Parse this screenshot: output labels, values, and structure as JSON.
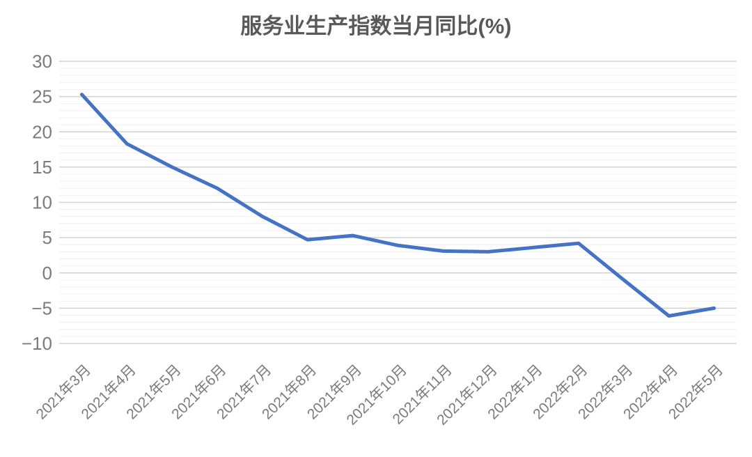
{
  "title": "服务业生产指数当月同比(%)",
  "colors": {
    "line": "#4472C4",
    "title_text": "#595959",
    "axis_text": "#7b7b7b",
    "grid_major": "#d2d2d2",
    "grid_minor": "#efefef",
    "background": "#ffffff"
  },
  "chart_data": {
    "type": "line",
    "title": "服务业生产指数当月同比(%)",
    "xlabel": "",
    "ylabel": "",
    "categories": [
      "2021年3月",
      "2021年4月",
      "2021年5月",
      "2021年6月",
      "2021年7月",
      "2021年8月",
      "2021年9月",
      "2021年10月",
      "2021年11月",
      "2021年12月",
      "2022年1月",
      "2022年2月",
      "2022年3月",
      "2022年4月",
      "2022年5月"
    ],
    "series": [
      {
        "name": "服务业生产指数当月同比",
        "values": [
          25.3,
          18.3,
          15.0,
          12.0,
          8.0,
          4.7,
          5.3,
          3.9,
          3.1,
          3.0,
          3.6,
          4.2,
          -1.0,
          -6.1,
          -5.0
        ]
      }
    ],
    "ylim": [
      -10,
      30
    ],
    "y_ticks": [
      30,
      25,
      20,
      15,
      10,
      5,
      0,
      -5,
      -10
    ],
    "y_major_step": 5,
    "y_minor_step": 1,
    "grid": "on",
    "legend": "none",
    "x_label_rotation": -45
  }
}
